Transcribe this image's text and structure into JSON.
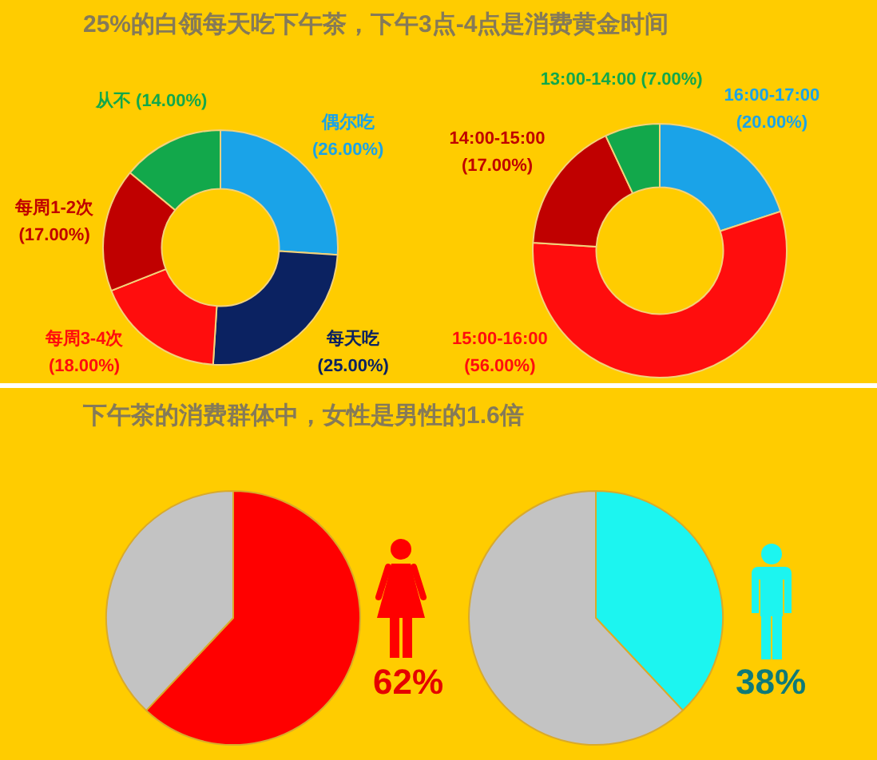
{
  "chart_data": [
    {
      "type": "donut",
      "title": "25%的白领每天吃下午茶，下午3点-4点是消费黄金时间",
      "categories": [
        "偶尔吃",
        "每天吃",
        "每周3-4次",
        "每周1-2次",
        "从不"
      ],
      "values": [
        26,
        25,
        18,
        17,
        14
      ],
      "colors": [
        "#1aa3e8",
        "#0b2261",
        "#ff0d0d",
        "#c00000",
        "#12a84b"
      ],
      "value_labels": [
        "(26.00%)",
        "(25.00%)",
        "(18.00%)",
        "(17.00%)",
        "(14.00%)"
      ]
    },
    {
      "type": "donut",
      "categories": [
        "16:00-17:00",
        "15:00-16:00",
        "14:00-15:00",
        "13:00-14:00"
      ],
      "values": [
        20,
        56,
        17,
        7
      ],
      "colors": [
        "#1aa3e8",
        "#ff0d0d",
        "#c00000",
        "#12a84b"
      ],
      "value_labels": [
        "(20.00%)",
        "(56.00%)",
        "(17.00%)",
        "(7.00%)"
      ]
    },
    {
      "type": "pie",
      "title": "下午茶的消费群体中，女性是男性的1.6倍",
      "categories": [
        null,
        null
      ],
      "values": [
        62,
        38
      ],
      "colors": [
        "#ff0000",
        "#c3c3c3"
      ],
      "value_labels": [
        "62%",
        null
      ]
    },
    {
      "type": "pie",
      "categories": [
        null,
        null
      ],
      "values": [
        38,
        62
      ],
      "colors": [
        "#1cf5f0",
        "#c3c3c3"
      ],
      "value_labels": [
        "38%",
        null
      ]
    }
  ]
}
